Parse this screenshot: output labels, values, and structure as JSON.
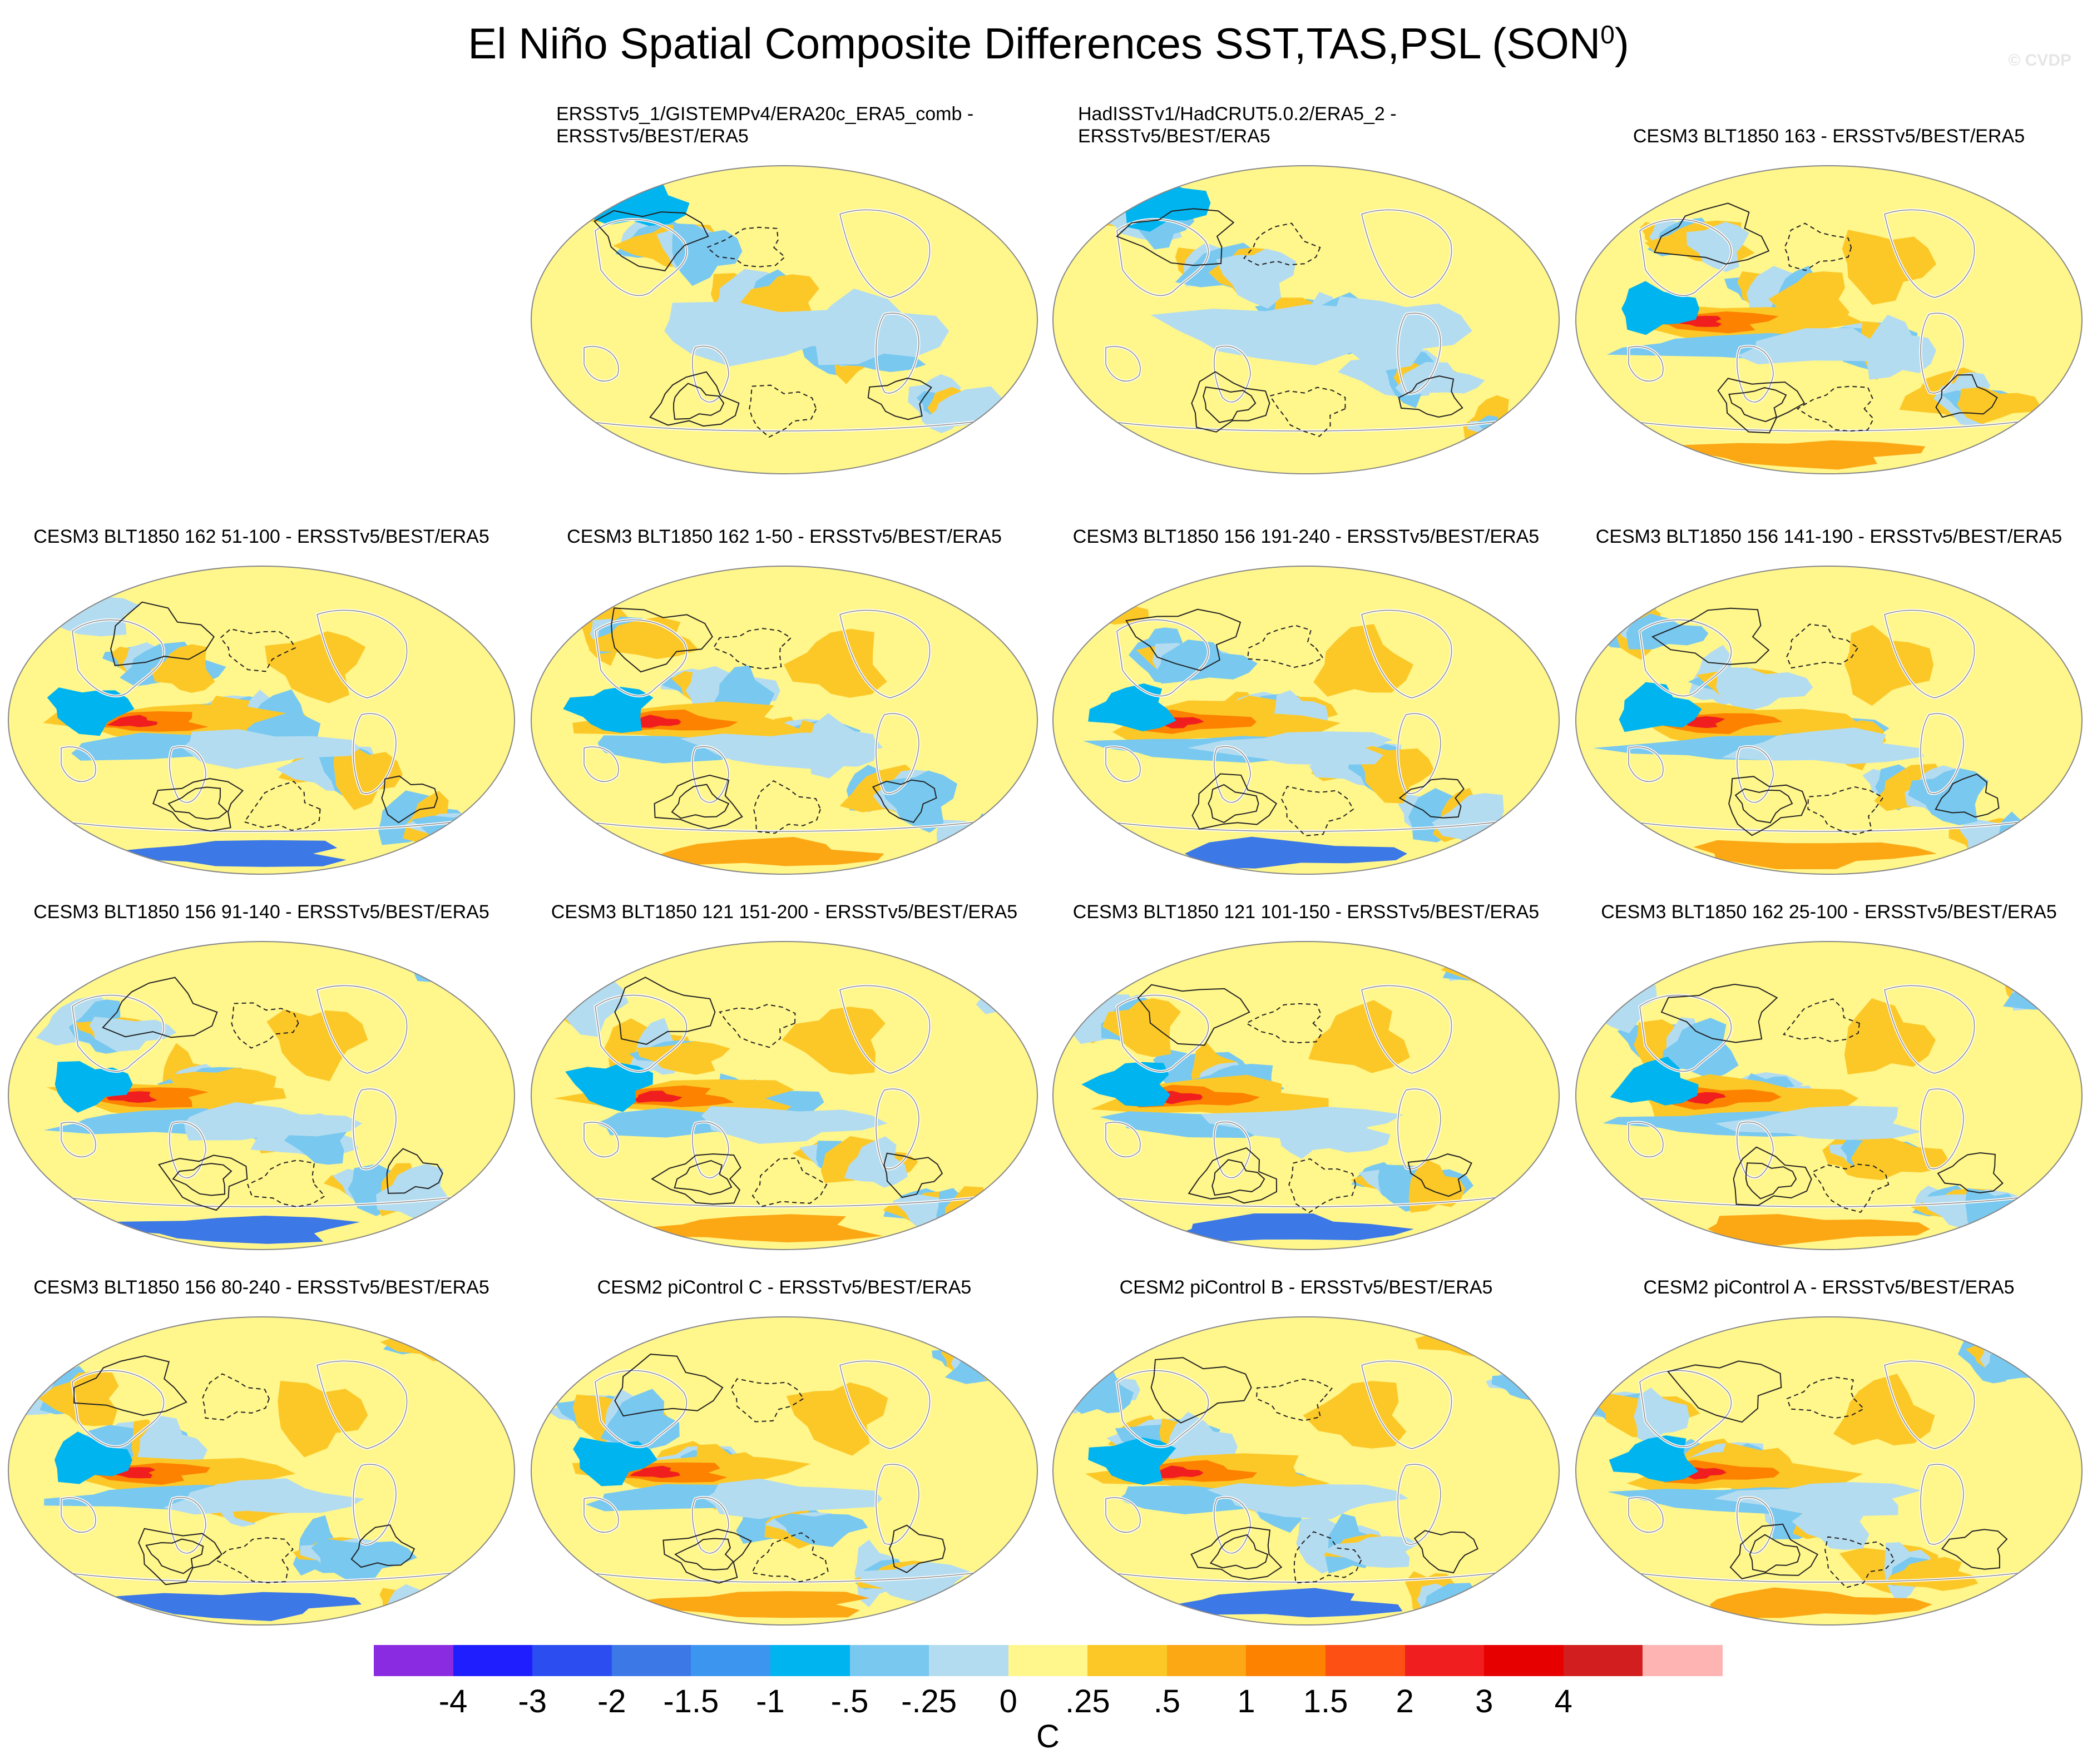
{
  "title": {
    "text": "El Niño Spatial Composite Differences SST,TAS,PSL (SON",
    "sup": "0",
    "close": ")"
  },
  "watermark": "© CVDP",
  "panels": [
    {
      "line1": "ERSSTv5_1/GISTEMPv4/ERA20c_ERA5_comb -",
      "line2": "ERSSTv5/BEST/ERA5",
      "pattern": "obs1"
    },
    {
      "line1": "HadISSTv1/HadCRUT5.0.2/ERA5_2 -",
      "line2": "ERSSTv5/BEST/ERA5",
      "pattern": "obs2"
    },
    {
      "line1": "CESM3 BLT1850 163 - ERSSTv5/BEST/ERA5",
      "line2": "",
      "pattern": "model"
    },
    {
      "line1": "CESM3 BLT1850 162 51-100 - ERSSTv5/BEST/ERA5",
      "line2": "",
      "pattern": "model"
    },
    {
      "line1": "CESM3 BLT1850 162 1-50 - ERSSTv5/BEST/ERA5",
      "line2": "",
      "pattern": "model"
    },
    {
      "line1": "CESM3 BLT1850 156 191-240 - ERSSTv5/BEST/ERA5",
      "line2": "",
      "pattern": "model"
    },
    {
      "line1": "CESM3 BLT1850 156 141-190 - ERSSTv5/BEST/ERA5",
      "line2": "",
      "pattern": "model"
    },
    {
      "line1": "CESM3 BLT1850 156 91-140 - ERSSTv5/BEST/ERA5",
      "line2": "",
      "pattern": "model"
    },
    {
      "line1": "CESM3 BLT1850 121 151-200 - ERSSTv5/BEST/ERA5",
      "line2": "",
      "pattern": "model"
    },
    {
      "line1": "CESM3 BLT1850 121 101-150 - ERSSTv5/BEST/ERA5",
      "line2": "",
      "pattern": "model"
    },
    {
      "line1": "CESM3 BLT1850 162 25-100 - ERSSTv5/BEST/ERA5",
      "line2": "",
      "pattern": "model"
    },
    {
      "line1": "CESM3 BLT1850 156 80-240 - ERSSTv5/BEST/ERA5",
      "line2": "",
      "pattern": "model"
    },
    {
      "line1": "CESM2 piControl C - ERSSTv5/BEST/ERA5",
      "line2": "",
      "pattern": "model"
    },
    {
      "line1": "CESM2 piControl B - ERSSTv5/BEST/ERA5",
      "line2": "",
      "pattern": "model"
    },
    {
      "line1": "CESM2 piControl A - ERSSTv5/BEST/ERA5",
      "line2": "",
      "pattern": "model"
    }
  ],
  "colorbar": {
    "colors": [
      "#8a2be2",
      "#1e1eff",
      "#2c4ef0",
      "#3c78e6",
      "#3c96f0",
      "#00b4f0",
      "#78c8f0",
      "#b4dcf0",
      "#fff68c",
      "#fcc828",
      "#fca814",
      "#fc8200",
      "#fc5014",
      "#f01e1e",
      "#e60000",
      "#d21e1e",
      "#ffb4b4"
    ],
    "ticks": [
      "-4",
      "-3",
      "-2",
      "-1.5",
      "-1",
      "-.5",
      "-.25",
      "0",
      ".25",
      ".5",
      "1",
      "1.5",
      "2",
      "3",
      "4"
    ],
    "unit": "C"
  }
}
